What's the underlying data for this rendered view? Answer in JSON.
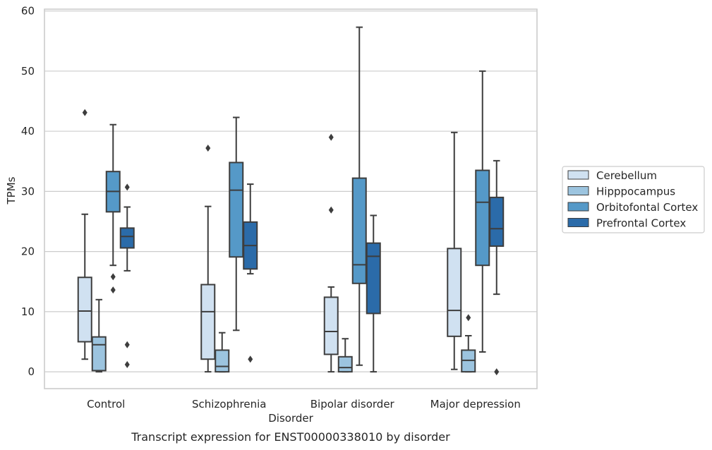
{
  "chart_data": {
    "type": "box",
    "xlabel": "Disorder",
    "ylabel": "TPMs",
    "caption": "Transcript expression for ENST00000338010 by disorder",
    "ylim": [
      -2.8,
      60.3
    ],
    "yticks": [
      0,
      10,
      20,
      30,
      40,
      50,
      60
    ],
    "grid": "horizontal",
    "legend_position": "right",
    "categories": [
      "Control",
      "Schizophrenia",
      "Bipolar disorder",
      "Major depression"
    ],
    "series": [
      {
        "name": "Cerebellum",
        "color": "#d0e1f1",
        "boxes": [
          {
            "whislo": 2.1,
            "q1": 5.0,
            "med": 10.1,
            "q3": 15.7,
            "whishi": 26.2,
            "fliers": [
              43.1
            ]
          },
          {
            "whislo": 0.0,
            "q1": 2.1,
            "med": 10.0,
            "q3": 14.5,
            "whishi": 27.5,
            "fliers": [
              37.2
            ]
          },
          {
            "whislo": 0.0,
            "q1": 2.9,
            "med": 6.7,
            "q3": 12.4,
            "whishi": 14.1,
            "fliers": [
              39.0,
              26.9
            ]
          },
          {
            "whislo": 0.4,
            "q1": 5.9,
            "med": 10.2,
            "q3": 20.5,
            "whishi": 39.8,
            "fliers": []
          }
        ]
      },
      {
        "name": "Hipppocampus",
        "color": "#9cc4df",
        "boxes": [
          {
            "whislo": 0.0,
            "q1": 0.2,
            "med": 4.5,
            "q3": 5.8,
            "whishi": 12.0,
            "fliers": []
          },
          {
            "whislo": 0.0,
            "q1": 0.0,
            "med": 0.9,
            "q3": 3.6,
            "whishi": 6.5,
            "fliers": []
          },
          {
            "whislo": 0.0,
            "q1": 0.0,
            "med": 0.7,
            "q3": 2.5,
            "whishi": 5.5,
            "fliers": []
          },
          {
            "whislo": 0.0,
            "q1": 0.0,
            "med": 1.9,
            "q3": 3.6,
            "whishi": 6.0,
            "fliers": [
              9.0
            ]
          }
        ]
      },
      {
        "name": "Orbitofontal Cortex",
        "color": "#5599c8",
        "boxes": [
          {
            "whislo": 17.7,
            "q1": 26.6,
            "med": 30.0,
            "q3": 33.3,
            "whishi": 41.1,
            "fliers": [
              15.8,
              13.6
            ]
          },
          {
            "whislo": 6.9,
            "q1": 19.1,
            "med": 30.2,
            "q3": 34.8,
            "whishi": 42.3,
            "fliers": []
          },
          {
            "whislo": 1.1,
            "q1": 14.7,
            "med": 17.8,
            "q3": 32.2,
            "whishi": 57.3,
            "fliers": []
          },
          {
            "whislo": 3.3,
            "q1": 17.7,
            "med": 28.2,
            "q3": 33.5,
            "whishi": 50.0,
            "fliers": []
          }
        ]
      },
      {
        "name": "Prefrontal Cortex",
        "color": "#2b6ba9",
        "boxes": [
          {
            "whislo": 16.8,
            "q1": 20.6,
            "med": 22.5,
            "q3": 23.9,
            "whishi": 27.4,
            "fliers": [
              30.7,
              4.5,
              1.2
            ]
          },
          {
            "whislo": 16.3,
            "q1": 17.1,
            "med": 21.0,
            "q3": 24.9,
            "whishi": 31.2,
            "fliers": [
              2.1
            ]
          },
          {
            "whislo": 0.0,
            "q1": 9.7,
            "med": 19.2,
            "q3": 21.4,
            "whishi": 26.0,
            "fliers": []
          },
          {
            "whislo": 12.9,
            "q1": 20.9,
            "med": 23.8,
            "q3": 29.0,
            "whishi": 35.1,
            "fliers": [
              0.0
            ]
          }
        ]
      }
    ]
  }
}
